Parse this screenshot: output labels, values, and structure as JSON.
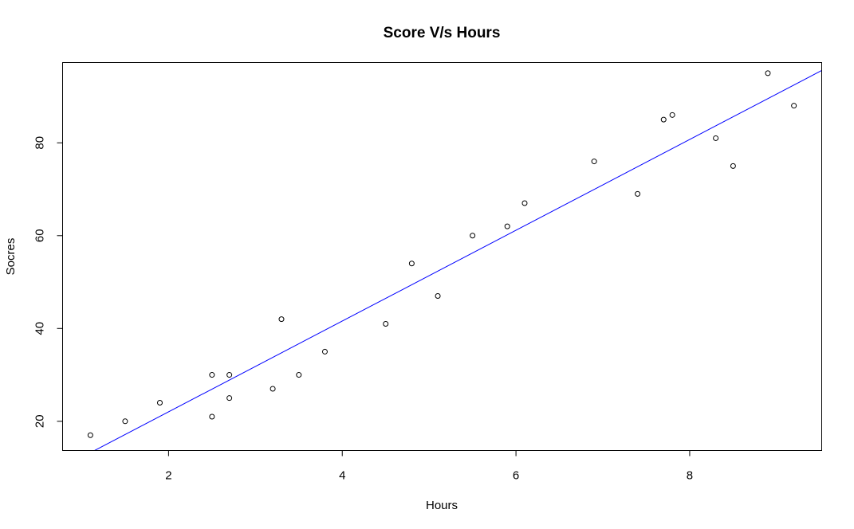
{
  "chart_data": {
    "type": "scatter",
    "title": "Score V/s Hours",
    "xlabel": "Hours",
    "ylabel": "Socres",
    "xlim": [
      0.78,
      9.52
    ],
    "ylim": [
      13.7,
      97.3
    ],
    "xticks": [
      2,
      4,
      6,
      8
    ],
    "yticks": [
      20,
      40,
      60,
      80
    ],
    "grid": false,
    "point_color": "#000000",
    "line_color": "#0000ff",
    "points": [
      {
        "x": 1.1,
        "y": 17
      },
      {
        "x": 1.5,
        "y": 20
      },
      {
        "x": 1.9,
        "y": 24
      },
      {
        "x": 2.5,
        "y": 30
      },
      {
        "x": 2.5,
        "y": 21
      },
      {
        "x": 2.7,
        "y": 30
      },
      {
        "x": 2.7,
        "y": 25
      },
      {
        "x": 3.2,
        "y": 27
      },
      {
        "x": 3.3,
        "y": 42
      },
      {
        "x": 3.5,
        "y": 30
      },
      {
        "x": 3.8,
        "y": 35
      },
      {
        "x": 4.5,
        "y": 41
      },
      {
        "x": 4.8,
        "y": 54
      },
      {
        "x": 5.1,
        "y": 47
      },
      {
        "x": 5.5,
        "y": 60
      },
      {
        "x": 5.9,
        "y": 62
      },
      {
        "x": 6.1,
        "y": 67
      },
      {
        "x": 6.9,
        "y": 76
      },
      {
        "x": 7.4,
        "y": 69
      },
      {
        "x": 7.7,
        "y": 85
      },
      {
        "x": 7.8,
        "y": 86
      },
      {
        "x": 8.3,
        "y": 81
      },
      {
        "x": 8.5,
        "y": 75
      },
      {
        "x": 8.9,
        "y": 95
      },
      {
        "x": 9.2,
        "y": 88
      }
    ],
    "regression_line": {
      "intercept": 2.48,
      "slope": 9.78
    }
  }
}
